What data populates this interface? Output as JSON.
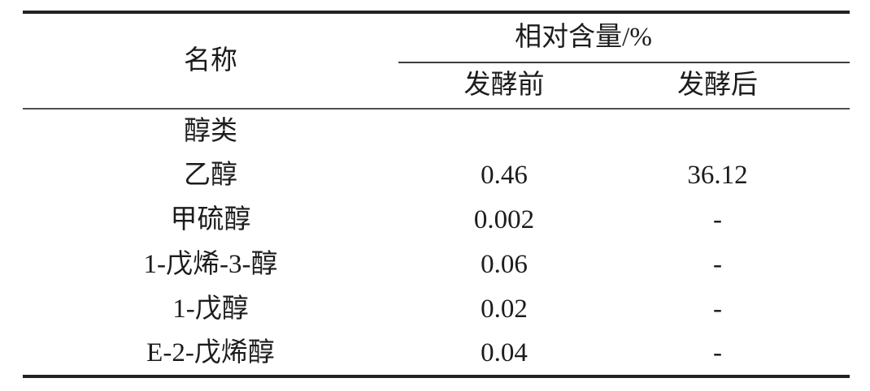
{
  "chart_data": {
    "type": "table",
    "title": "",
    "header": {
      "name": "名称",
      "group": "相对含量/%",
      "sub": [
        "发酵前",
        "发酵后"
      ]
    },
    "rows": [
      [
        "醇类",
        "",
        ""
      ],
      [
        "乙醇",
        "0.46",
        "36.12"
      ],
      [
        "甲硫醇",
        "0.002",
        "-"
      ],
      [
        "1-戊烯-3-醇",
        "0.06",
        "-"
      ],
      [
        "1-戊醇",
        "0.02",
        "-"
      ],
      [
        "E-2-戊烯醇",
        "0.04",
        "-"
      ]
    ],
    "layout": {
      "rule_style": "three-line booktabs",
      "rule_color": "#222226",
      "text_color": "#1c1c1e",
      "background": "#ffffff"
    }
  }
}
